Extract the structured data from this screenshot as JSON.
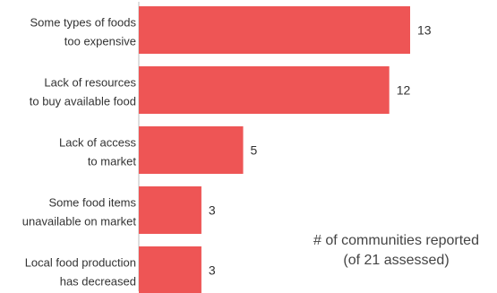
{
  "chart_data": {
    "type": "bar",
    "orientation": "horizontal",
    "categories": [
      [
        "Some types of foods",
        "too expensive"
      ],
      [
        "Lack of resources",
        "to buy available food"
      ],
      [
        "Lack of access",
        "to market"
      ],
      [
        "Some food items",
        "unavailable on market"
      ],
      [
        "Local food production",
        "has decreased"
      ]
    ],
    "values": [
      13,
      12,
      5,
      3,
      3
    ],
    "title": "",
    "xlabel": "",
    "ylabel": "",
    "xlim": [
      0,
      13
    ],
    "grid": false,
    "bar_color": "#ee5555",
    "annotation": {
      "line1": "# of communities reported",
      "line2": "(of 21 assessed)"
    }
  }
}
